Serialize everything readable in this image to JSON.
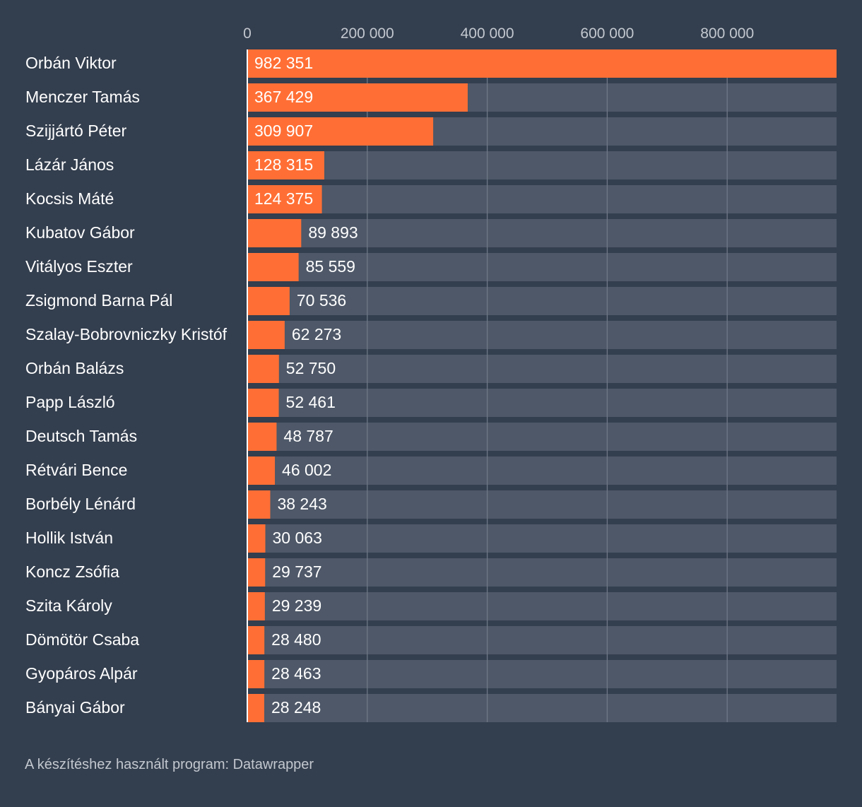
{
  "chart_data": {
    "type": "bar",
    "orientation": "horizontal",
    "categories": [
      "Orbán Viktor",
      "Menczer Tamás",
      "Szijjártó Péter",
      "Lázár János",
      "Kocsis Máté",
      "Kubatov Gábor",
      "Vitályos Eszter",
      "Zsigmond Barna Pál",
      "Szalay-Bobrovniczky Kristóf",
      "Orbán Balázs",
      "Papp László",
      "Deutsch Tamás",
      "Rétvári Bence",
      "Borbély Lénárd",
      "Hollik István",
      "Koncz Zsófia",
      "Szita Károly",
      "Dömötör Csaba",
      "Gyopáros Alpár",
      "Bányai Gábor"
    ],
    "values": [
      982351,
      367429,
      309907,
      128315,
      124375,
      89893,
      85559,
      70536,
      62273,
      52750,
      52461,
      48787,
      46002,
      38243,
      30063,
      29737,
      29239,
      28480,
      28463,
      28248
    ],
    "value_labels": [
      "982 351",
      "367 429",
      "309 907",
      "128 315",
      "124 375",
      "89 893",
      "85 559",
      "70 536",
      "62 273",
      "52 750",
      "52 461",
      "48 787",
      "46 002",
      "38 243",
      "30 063",
      "29 737",
      "29 239",
      "28 480",
      "28 463",
      "28 248"
    ],
    "xlim": [
      0,
      982351
    ],
    "ticks": [
      0,
      200000,
      400000,
      600000,
      800000
    ],
    "tick_labels": [
      "0",
      "200 000",
      "400 000",
      "600 000",
      "800 000"
    ],
    "grid": true,
    "colors": {
      "background": "#333e4e",
      "bar": "#ff6f35",
      "track": "#4e5868",
      "grid": "#6e7887",
      "text": "#ffffff",
      "tick_text": "#c3c8cf"
    }
  },
  "footer": {
    "credit": "A készítéshez használt program: Datawrapper"
  }
}
